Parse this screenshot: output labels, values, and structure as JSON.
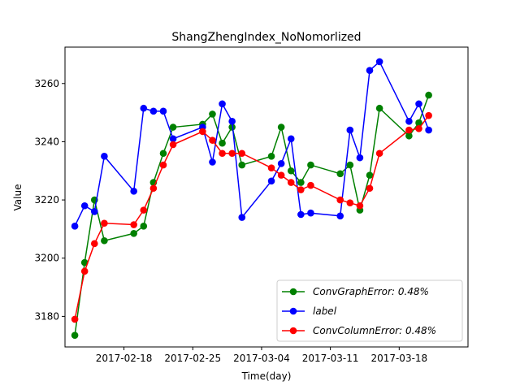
{
  "chart_data": {
    "type": "line",
    "title": "ShangZhengIndex_NoNomorlized",
    "xlabel": "Time(day)",
    "ylabel": "Value",
    "x_type": "date",
    "xlim": [
      "2017-02-12",
      "2017-03-25"
    ],
    "ylim": [
      3169.5,
      3272.5
    ],
    "x_ticks": [
      "2017-02-18",
      "2017-02-25",
      "2017-03-04",
      "2017-03-11",
      "2017-03-18"
    ],
    "y_ticks": [
      3180,
      3200,
      3220,
      3240,
      3260
    ],
    "grid": false,
    "legend_position": "lower-right",
    "series": [
      {
        "name": "ConvGraphError",
        "legend_label": "ConvGraphError: 0.48%",
        "color": "#008000",
        "x": [
          "2017-02-13",
          "2017-02-14",
          "2017-02-15",
          "2017-02-16",
          "2017-02-19",
          "2017-02-20",
          "2017-02-21",
          "2017-02-22",
          "2017-02-23",
          "2017-02-26",
          "2017-02-27",
          "2017-02-28",
          "2017-03-01",
          "2017-03-02",
          "2017-03-05",
          "2017-03-06",
          "2017-03-07",
          "2017-03-08",
          "2017-03-09",
          "2017-03-12",
          "2017-03-13",
          "2017-03-14",
          "2017-03-15",
          "2017-03-16",
          "2017-03-19",
          "2017-03-20",
          "2017-03-21"
        ],
        "y": [
          3173.5,
          3198.5,
          3220,
          3206,
          3208.5,
          3211,
          3226,
          3236,
          3245,
          3246,
          3249.5,
          3239.5,
          3245,
          3232,
          3235,
          3245,
          3230,
          3226,
          3232,
          3229,
          3232,
          3216.5,
          3228.5,
          3251.5,
          3242,
          3246.5,
          3256
        ]
      },
      {
        "name": "label",
        "legend_label": "label",
        "color": "#0000ff",
        "x": [
          "2017-02-13",
          "2017-02-14",
          "2017-02-15",
          "2017-02-16",
          "2017-02-19",
          "2017-02-20",
          "2017-02-21",
          "2017-02-22",
          "2017-02-23",
          "2017-02-26",
          "2017-02-27",
          "2017-02-28",
          "2017-03-01",
          "2017-03-02",
          "2017-03-05",
          "2017-03-06",
          "2017-03-07",
          "2017-03-08",
          "2017-03-09",
          "2017-03-12",
          "2017-03-13",
          "2017-03-14",
          "2017-03-15",
          "2017-03-16",
          "2017-03-19",
          "2017-03-20",
          "2017-03-21"
        ],
        "y": [
          3211,
          3218,
          3216,
          3235,
          3223,
          3251.5,
          3250.5,
          3250.5,
          3241,
          3245,
          3233,
          3253,
          3247,
          3214,
          3226.5,
          3232.5,
          3241,
          3215,
          3215.5,
          3214.5,
          3244,
          3234.5,
          3264.5,
          3267.5,
          3247,
          3253,
          3244
        ]
      },
      {
        "name": "ConvColumnError",
        "legend_label": "ConvColumnError: 0.48%",
        "color": "#ff0000",
        "x": [
          "2017-02-13",
          "2017-02-14",
          "2017-02-15",
          "2017-02-16",
          "2017-02-19",
          "2017-02-20",
          "2017-02-21",
          "2017-02-22",
          "2017-02-23",
          "2017-02-26",
          "2017-02-27",
          "2017-02-28",
          "2017-03-01",
          "2017-03-02",
          "2017-03-05",
          "2017-03-06",
          "2017-03-07",
          "2017-03-08",
          "2017-03-09",
          "2017-03-12",
          "2017-03-13",
          "2017-03-14",
          "2017-03-15",
          "2017-03-16",
          "2017-03-19",
          "2017-03-20",
          "2017-03-21"
        ],
        "y": [
          3179,
          3195.5,
          3205,
          3212,
          3211.5,
          3216.5,
          3224,
          3232,
          3239,
          3243.5,
          3240.5,
          3236,
          3236,
          3236,
          3231,
          3228.5,
          3226,
          3223.5,
          3225,
          3220,
          3219,
          3218,
          3224,
          3236,
          3244,
          3244.5,
          3249
        ]
      }
    ]
  }
}
